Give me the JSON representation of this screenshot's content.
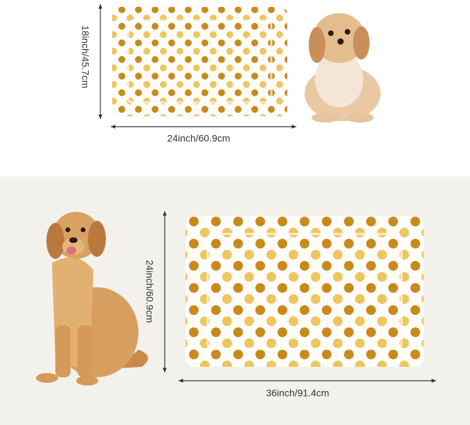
{
  "small_mat": {
    "height_label": "18inch/45.7cm",
    "width_label": "24inch/60.9cm"
  },
  "large_mat": {
    "height_label": "24inch/60.9cm",
    "width_label": "36inch/91.4cm"
  }
}
